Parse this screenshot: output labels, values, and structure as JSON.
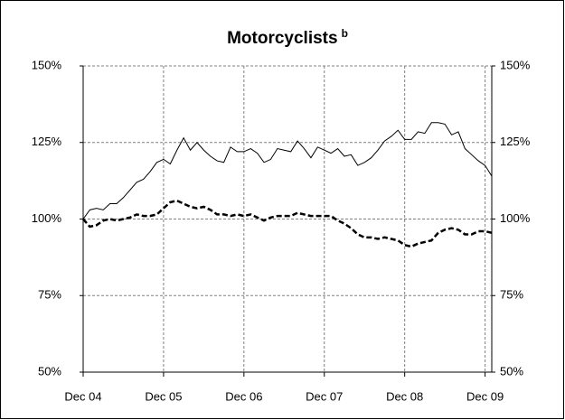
{
  "chart_data": {
    "type": "line",
    "title": "Motorcyclists",
    "title_superscript": "b",
    "categories": [
      "Dec 04",
      null,
      null,
      null,
      null,
      null,
      null,
      null,
      null,
      null,
      null,
      null,
      "Dec 05",
      null,
      null,
      null,
      null,
      null,
      null,
      null,
      null,
      null,
      null,
      null,
      "Dec 06",
      null,
      null,
      null,
      null,
      null,
      null,
      null,
      null,
      null,
      null,
      null,
      "Dec 07",
      null,
      null,
      null,
      null,
      null,
      null,
      null,
      null,
      null,
      null,
      null,
      "Dec 08",
      null,
      null,
      null,
      null,
      null,
      null,
      null,
      null,
      null,
      null,
      null,
      "Dec 09",
      null
    ],
    "series": [
      {
        "color": "#000000",
        "dashed": false,
        "values": [
          100,
          103,
          103.5,
          103,
          105,
          105,
          107,
          109.5,
          112,
          113,
          115.5,
          118.5,
          119.5,
          118,
          122.5,
          126.5,
          122.5,
          125,
          122.5,
          120.5,
          119,
          118.5,
          123.5,
          122,
          122,
          123,
          121.5,
          118.5,
          119.5,
          123,
          122.5,
          122,
          125.5,
          123,
          120,
          123.5,
          122.5,
          121.5,
          123,
          120.5,
          121,
          117.5,
          118.5,
          120,
          122.5,
          125.5,
          127,
          129,
          126,
          126,
          128.5,
          128,
          131.5,
          131.5,
          131,
          127.5,
          128.5,
          123,
          121,
          119,
          117.5,
          114
        ]
      },
      {
        "color": "#000000",
        "dashed": true,
        "values": [
          100,
          97.5,
          98,
          99.5,
          100,
          99.5,
          100,
          100.5,
          101.5,
          101,
          101,
          101.5,
          103.5,
          105.5,
          106,
          105,
          104,
          103.5,
          104,
          103,
          101.5,
          101.5,
          101,
          101.5,
          101,
          101.5,
          100.5,
          99.5,
          100.5,
          101,
          101,
          101,
          102,
          101.5,
          101,
          101,
          101,
          101,
          99.5,
          98.5,
          97,
          95,
          94,
          94,
          93.5,
          94,
          93.5,
          93,
          91.5,
          91,
          92,
          92.5,
          93,
          95.5,
          96.5,
          97,
          96.5,
          95,
          95,
          96,
          96,
          95.5
        ]
      }
    ],
    "ylim": [
      50,
      150
    ],
    "yticks": [
      {
        "value": 50,
        "label": "50%"
      },
      {
        "value": 75,
        "label": "75%"
      },
      {
        "value": 100,
        "label": "100%"
      },
      {
        "value": 125,
        "label": "125%"
      },
      {
        "value": 150,
        "label": "150%"
      }
    ],
    "y2lim": [
      50,
      150
    ],
    "y2ticks": [
      {
        "value": 50,
        "label": "50%"
      },
      {
        "value": 75,
        "label": "75%"
      },
      {
        "value": 100,
        "label": "100%"
      },
      {
        "value": 125,
        "label": "125%"
      },
      {
        "value": 150,
        "label": "150%"
      }
    ],
    "grid": true
  }
}
